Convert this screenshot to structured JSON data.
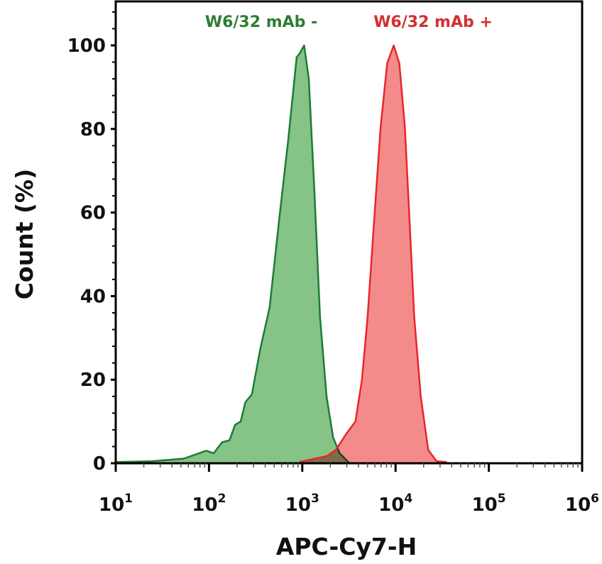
{
  "chart_data": {
    "type": "area",
    "title": "",
    "xlabel": "APC-Cy7-H",
    "ylabel": "Count (%)",
    "xscale": "log",
    "xlim": [
      10,
      1000000
    ],
    "ylim": [
      0,
      100
    ],
    "x_ticks": [
      {
        "base": "10",
        "exp": "1",
        "value": 10
      },
      {
        "base": "10",
        "exp": "2",
        "value": 100
      },
      {
        "base": "10",
        "exp": "3",
        "value": 1000
      },
      {
        "base": "10",
        "exp": "4",
        "value": 10000
      },
      {
        "base": "10",
        "exp": "5",
        "value": 100000
      },
      {
        "base": "10",
        "exp": "6",
        "value": 1000000
      }
    ],
    "y_ticks": [
      "0",
      "20",
      "40",
      "60",
      "80",
      "100"
    ],
    "grid": false,
    "legend_placement": "top (labels above peaks)",
    "series": [
      {
        "name": "W6/32 mAb -",
        "color": "#2e7d32",
        "line_color": "#1e7b34",
        "fill_color": "#86c387",
        "log10_x": [
          1.0,
          1.39,
          1.73,
          1.97,
          2.05,
          2.14,
          2.22,
          2.28,
          2.34,
          2.39,
          2.46,
          2.55,
          2.65,
          2.75,
          2.85,
          2.94,
          2.97,
          3.02,
          3.07,
          3.13,
          3.19,
          3.26,
          3.33,
          3.4,
          3.5
        ],
        "y": [
          0.3,
          0.5,
          1.1,
          3,
          2.4,
          5,
          5.5,
          9.2,
          10,
          14.6,
          16.5,
          27.4,
          37.3,
          57.8,
          77.5,
          97.2,
          98,
          100,
          92,
          65,
          35,
          16,
          6.2,
          2.4,
          0.15
        ]
      },
      {
        "name": "W6/32 mAb +",
        "color": "#d32f2f",
        "line_color": "#e8262a",
        "fill_color": "#f28585",
        "log10_x": [
          2.97,
          3.26,
          3.36,
          3.47,
          3.57,
          3.64,
          3.7,
          3.77,
          3.84,
          3.91,
          3.98,
          4.04,
          4.1,
          4.15,
          4.2,
          4.27,
          4.35,
          4.44,
          4.54,
          4.55
        ],
        "y": [
          0.3,
          1.7,
          3.2,
          7,
          10,
          20,
          35,
          58,
          80.5,
          95.7,
          100,
          95.7,
          80.5,
          58,
          35,
          16,
          3.2,
          0.5,
          0.3,
          0
        ]
      }
    ]
  }
}
